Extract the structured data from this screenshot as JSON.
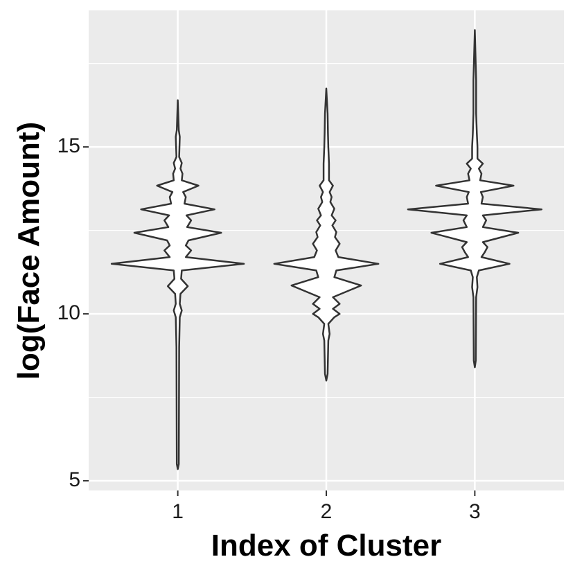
{
  "chart_data": {
    "type": "violin",
    "xlabel": "Index of Cluster",
    "ylabel": "log(Face Amount)",
    "categories": [
      "1",
      "2",
      "3"
    ],
    "color": "#333333",
    "fill": "#ffffff",
    "background": "#ebebeb",
    "grid": true,
    "ylim": [
      4.71,
      19.09
    ],
    "yticks": [
      5,
      10,
      15
    ],
    "yminor": [
      7.5,
      12.5,
      17.5
    ],
    "violins": [
      {
        "y": [
          5.35,
          5.5,
          9,
          9.9,
          10.1,
          10.3,
          10.6,
          10.83,
          11.05,
          11.3,
          11.5,
          11.7,
          11.9,
          12.05,
          12.2,
          12.43,
          12.6,
          12.8,
          12.95,
          13.13,
          13.3,
          13.5,
          13.65,
          13.84,
          14.0,
          14.2,
          14.35,
          14.52,
          14.7,
          15.3,
          15.5,
          16.4
        ],
        "density": [
          0,
          0.015,
          0.02,
          0.03,
          0.06,
          0.03,
          0.04,
          0.15,
          0.05,
          0.06,
          0.99,
          0.12,
          0.2,
          0.12,
          0.16,
          0.65,
          0.14,
          0.2,
          0.13,
          0.55,
          0.1,
          0.12,
          0.08,
          0.31,
          0.06,
          0.07,
          0.04,
          0.06,
          0.02,
          0.03,
          0.015,
          0
        ]
      },
      {
        "y": [
          8.0,
          8.2,
          9.2,
          9.4,
          9.7,
          9.9,
          10.0,
          10.15,
          10.3,
          10.5,
          10.85,
          11.1,
          11.3,
          11.5,
          11.7,
          11.9,
          12.1,
          12.3,
          12.45,
          12.65,
          12.8,
          12.95,
          13.15,
          13.35,
          13.5,
          13.65,
          13.84,
          14.0,
          14.5,
          15.0,
          15.4,
          16.0,
          16.75
        ],
        "density": [
          0,
          0.02,
          0.03,
          0.05,
          0.03,
          0.12,
          0.2,
          0.1,
          0.2,
          0.1,
          0.52,
          0.12,
          0.15,
          0.78,
          0.18,
          0.14,
          0.2,
          0.13,
          0.15,
          0.09,
          0.14,
          0.08,
          0.12,
          0.06,
          0.08,
          0.05,
          0.1,
          0.04,
          0.04,
          0.03,
          0.025,
          0.02,
          0
        ]
      },
      {
        "y": [
          8.4,
          8.6,
          10.5,
          10.8,
          11.1,
          11.3,
          11.5,
          11.7,
          11.85,
          12.0,
          12.15,
          12.43,
          12.6,
          12.8,
          12.95,
          13.13,
          13.3,
          13.5,
          13.65,
          13.84,
          14.0,
          14.2,
          14.35,
          14.5,
          14.65,
          15.0,
          15.4,
          16.0,
          17,
          18.5
        ],
        "density": [
          0,
          0.015,
          0.02,
          0.04,
          0.03,
          0.06,
          0.52,
          0.1,
          0.15,
          0.19,
          0.12,
          0.65,
          0.12,
          0.17,
          0.12,
          1.0,
          0.1,
          0.12,
          0.09,
          0.58,
          0.08,
          0.1,
          0.06,
          0.12,
          0.04,
          0.04,
          0.03,
          0.02,
          0.02,
          0
        ]
      }
    ]
  }
}
